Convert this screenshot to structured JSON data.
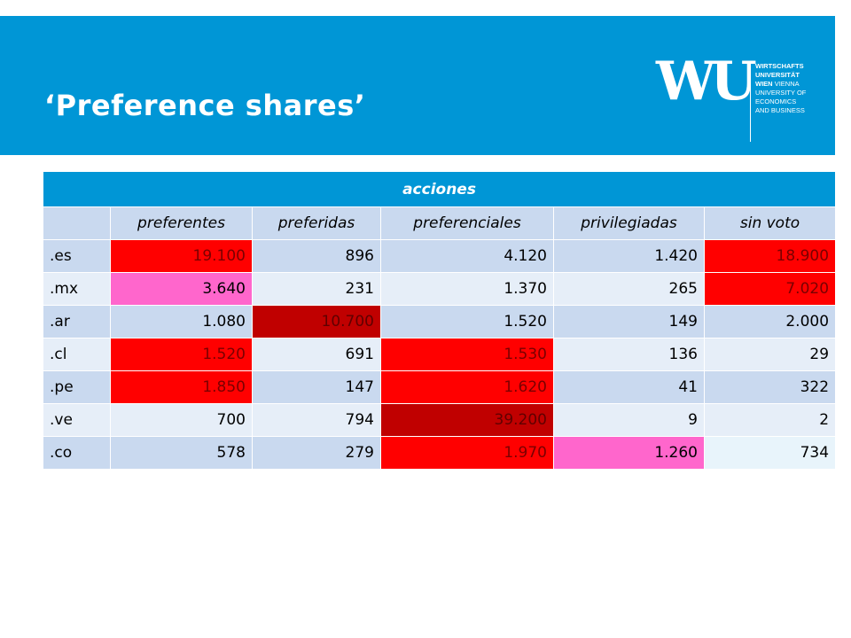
{
  "slide": {
    "title": "‘Preference shares’",
    "logo": {
      "mark": "WU",
      "lines": [
        "WIRTSCHAFTS",
        "UNIVERSITÄT",
        "WIEN",
        "VIENNA",
        "UNIVERSITY OF",
        "ECONOMICS",
        "AND BUSINESS"
      ]
    }
  },
  "table": {
    "group_header": "acciones",
    "columns": [
      "",
      "preferentes",
      "preferidas",
      "preferenciales",
      "privilegiadas",
      "sin voto"
    ],
    "rows": [
      {
        "label": ".es",
        "values": [
          "19.100",
          "896",
          "4.120",
          "1.420",
          "18.900"
        ],
        "highlight": [
          "red",
          "",
          "",
          "",
          "red"
        ]
      },
      {
        "label": ".mx",
        "values": [
          "3.640",
          "231",
          "1.370",
          "265",
          "7.020"
        ],
        "highlight": [
          "pink",
          "",
          "",
          "",
          "red"
        ]
      },
      {
        "label": ".ar",
        "values": [
          "1.080",
          "10.700",
          "1.520",
          "149",
          "2.000"
        ],
        "highlight": [
          "",
          "dark",
          "",
          "",
          ""
        ]
      },
      {
        "label": ".cl",
        "values": [
          "1.520",
          "691",
          "1.530",
          "136",
          "29"
        ],
        "highlight": [
          "red",
          "",
          "red",
          "",
          ""
        ]
      },
      {
        "label": ".pe",
        "values": [
          "1.850",
          "147",
          "1.620",
          "41",
          "322"
        ],
        "highlight": [
          "red",
          "",
          "red",
          "",
          ""
        ]
      },
      {
        "label": ".ve",
        "values": [
          "700",
          "794",
          "39.200",
          "9",
          "2"
        ],
        "highlight": [
          "",
          "",
          "dark",
          "",
          ""
        ]
      },
      {
        "label": ".co",
        "values": [
          "578",
          "279",
          "1.970",
          "1.260",
          "734"
        ],
        "highlight": [
          "",
          "",
          "red",
          "pink",
          "pale"
        ]
      }
    ],
    "colors": {
      "header_blue": "#0096d6",
      "row_dark": "#c9d9ef",
      "row_light": "#e6eef8",
      "red": "#ff0000",
      "dark_red": "#c00000",
      "pink": "#ff66cc"
    }
  }
}
